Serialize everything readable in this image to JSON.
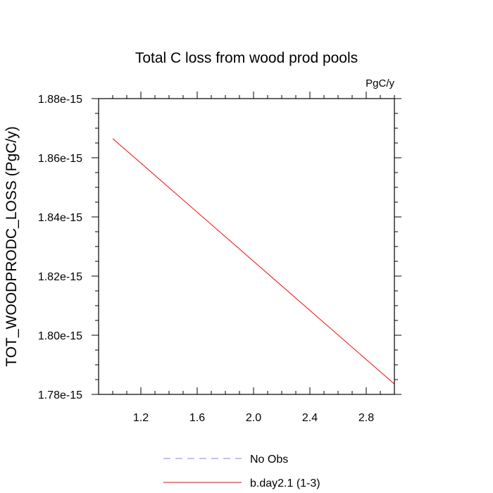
{
  "chart_data": {
    "type": "line",
    "title": "Total C loss from wood prod pools",
    "units_label": "PgC/y",
    "xlabel": "",
    "ylabel": "TOT_WOODPRODC_LOSS  (PgC/y)",
    "xlim": [
      0.9,
      3.0
    ],
    "ylim": [
      1.78e-15,
      1.88e-15
    ],
    "x_ticks": [
      1.2,
      1.6,
      2.0,
      2.4,
      2.8
    ],
    "x_tick_labels": [
      "1.2",
      "1.6",
      "2.0",
      "2.4",
      "2.8"
    ],
    "y_ticks": [
      1.78e-15,
      1.8e-15,
      1.82e-15,
      1.84e-15,
      1.86e-15,
      1.88e-15
    ],
    "y_tick_labels": [
      "1.78e-15",
      "1.80e-15",
      "1.82e-15",
      "1.84e-15",
      "1.86e-15",
      "1.88e-15"
    ],
    "grid": false,
    "legend_position": "bottom",
    "series": [
      {
        "name": "b.day2.1 (1-3)",
        "color": "#ff0000",
        "style": "solid",
        "x": [
          1.0,
          3.0
        ],
        "y": [
          1.8665e-15,
          1.7835e-15
        ]
      }
    ],
    "legend": [
      {
        "label": "No Obs",
        "color": "#8080ff",
        "style": "dashed"
      },
      {
        "label": "b.day2.1 (1-3)",
        "color": "#ff0000",
        "style": "solid"
      }
    ]
  }
}
